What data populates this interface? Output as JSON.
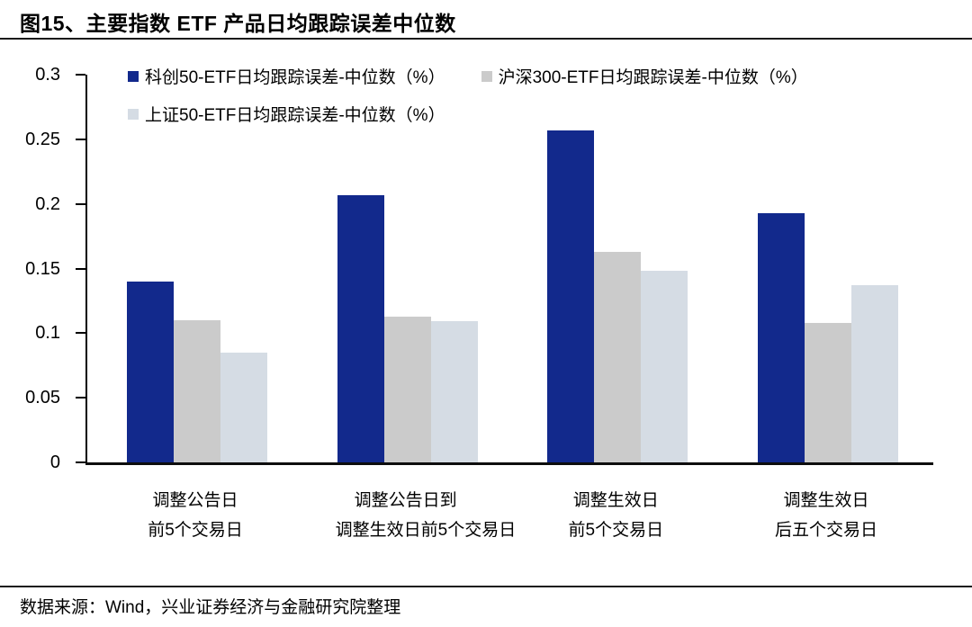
{
  "page": {
    "title": "图15、主要指数 ETF 产品日均跟踪误差中位数",
    "source_note": "数据来源：Wind，兴业证券经济与金融研究院整理"
  },
  "colors": {
    "series_kc50": "#12298C",
    "series_hs300": "#CBCBCB",
    "series_sz50": "#D5DCE4",
    "axis": "#000000",
    "rule": "#1A1A1A"
  },
  "chart_data": {
    "type": "bar",
    "title": "图15、主要指数 ETF 产品日均跟踪误差中位数",
    "categories": [
      [
        "调整公告日",
        "前5个交易日"
      ],
      [
        "调整公告日到",
        "调整生效日前5个交易日"
      ],
      [
        "调整生效日",
        "前5个交易日"
      ],
      [
        "调整生效日",
        "后五个交易日"
      ]
    ],
    "series": [
      {
        "name": "科创50-ETF日均跟踪误差-中位数（%）",
        "color": "#12298C",
        "values": [
          0.14,
          0.207,
          0.257,
          0.193
        ]
      },
      {
        "name": "沪深300-ETF日均跟踪误差-中位数（%）",
        "color": "#CBCBCB",
        "values": [
          0.11,
          0.113,
          0.163,
          0.108
        ]
      },
      {
        "name": "上证50-ETF日均跟踪误差-中位数（%）",
        "color": "#D5DCE4",
        "values": [
          0.085,
          0.109,
          0.148,
          0.137
        ]
      }
    ],
    "xlabel": "",
    "ylabel": "",
    "ylim": [
      0,
      0.3
    ],
    "yticks": [
      0,
      0.05,
      0.1,
      0.15,
      0.2,
      0.25,
      0.3
    ],
    "ytick_labels": [
      "0",
      "0.05",
      "0.1",
      "0.15",
      "0.2",
      "0.25",
      "0.3"
    ],
    "grid": false,
    "legend_position": "top-left"
  }
}
